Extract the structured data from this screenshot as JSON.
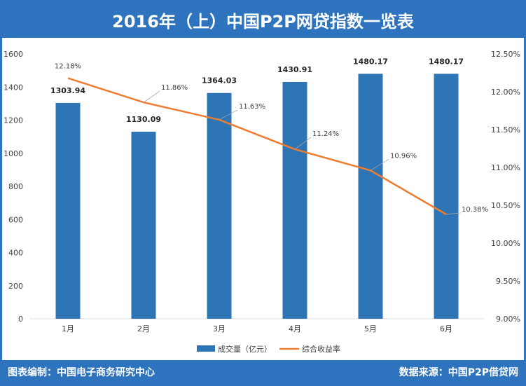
{
  "title": "2016年（上）中国P2P网贷指数一览表",
  "footer": {
    "left": "图表编制：中国电子商务研究中心",
    "right": "数据来源：中国P2P借贷网"
  },
  "colors": {
    "bar": "#2e75b6",
    "line": "#ed7d31",
    "header": "#2d73bd"
  },
  "chart_data": {
    "type": "bar",
    "categories": [
      "1月",
      "2月",
      "3月",
      "4月",
      "5月",
      "6月"
    ],
    "series": [
      {
        "name": "成交量（亿元）",
        "type": "bar",
        "axis": "left",
        "values": [
          1303.94,
          1130.09,
          1364.03,
          1430.91,
          1480.17,
          1480.17
        ],
        "labels": [
          "1303.94",
          "1130.09",
          "1364.03",
          "1430.91",
          "1480.17",
          "1480.17"
        ]
      },
      {
        "name": "综合收益率",
        "type": "line",
        "axis": "right",
        "values": [
          12.18,
          11.86,
          11.63,
          11.24,
          10.96,
          10.38
        ],
        "labels": [
          "12.18%",
          "11.86%",
          "11.63%",
          "11.24%",
          "10.96%",
          "10.38%"
        ]
      }
    ],
    "y_left": {
      "min": 0,
      "max": 1600,
      "ticks": [
        "0",
        "200",
        "400",
        "600",
        "800",
        "1000",
        "1200",
        "1400",
        "1600"
      ]
    },
    "y_right": {
      "min": 9.0,
      "max": 12.5,
      "ticks": [
        "9.00%",
        "9.50%",
        "10.00%",
        "10.50%",
        "11.00%",
        "11.50%",
        "12.00%",
        "12.50%"
      ]
    },
    "grid": false,
    "legend": "bottom"
  }
}
